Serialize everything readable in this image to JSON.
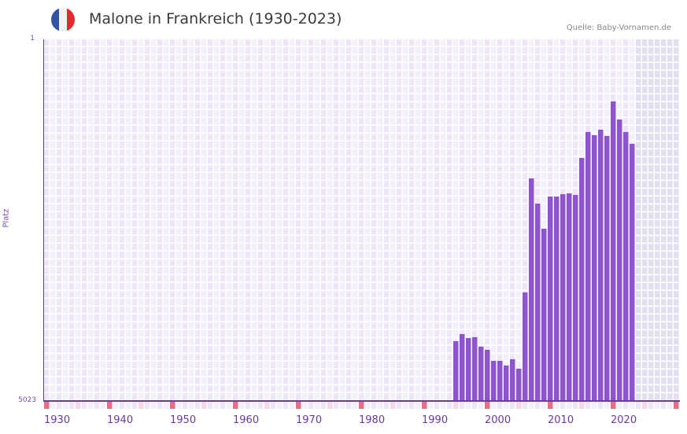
{
  "header": {
    "title": "Malone in Frankreich (1930-2023)",
    "source": "Quelle: Baby-Vornamen.de",
    "flag_icon": "france-flag-icon",
    "flag_colors": [
      "#3353a3",
      "#f2f2f4",
      "#e52a2f"
    ]
  },
  "colors": {
    "bar": "#8c55c9",
    "axis": "#6b3a9e",
    "grid_a": "#ece6f7",
    "grid_b": "#f3f0fb",
    "grid_future": "#e3dfee",
    "marker_decade": "#e3707c",
    "marker_half": "#f4d9e1"
  },
  "chart_data": {
    "type": "bar",
    "title": "Malone in Frankreich (1930-2023)",
    "xlabel": "",
    "ylabel": "Platz",
    "y_axis_inverted": true,
    "ylim": [
      1,
      5023
    ],
    "y_ticks": [
      "1",
      "5023"
    ],
    "x_range": [
      1928,
      2028
    ],
    "x_ticks": [
      "1930",
      "1940",
      "1950",
      "1960",
      "1970",
      "1980",
      "1990",
      "2000",
      "2010",
      "2020"
    ],
    "future_shaded_from": 2022,
    "grid": true,
    "legend": null,
    "categories": [
      1993,
      1994,
      1995,
      1996,
      1997,
      1998,
      1999,
      2000,
      2001,
      2002,
      2003,
      2004,
      2005,
      2006,
      2007,
      2008,
      2009,
      2010,
      2011,
      2012,
      2013,
      2014,
      2015,
      2016,
      2017,
      2018,
      2019,
      2020,
      2021
    ],
    "values": [
      4192,
      4094,
      4148,
      4137,
      4268,
      4312,
      4465,
      4465,
      4530,
      4443,
      4574,
      3515,
      1932,
      2282,
      2631,
      2184,
      2184,
      2151,
      2140,
      2162,
      1648,
      1288,
      1332,
      1256,
      1343,
      863,
      1114,
      1288,
      1452
    ]
  },
  "labels": {
    "y_top": "1",
    "y_bottom": "5023",
    "y_axis": "Platz"
  }
}
